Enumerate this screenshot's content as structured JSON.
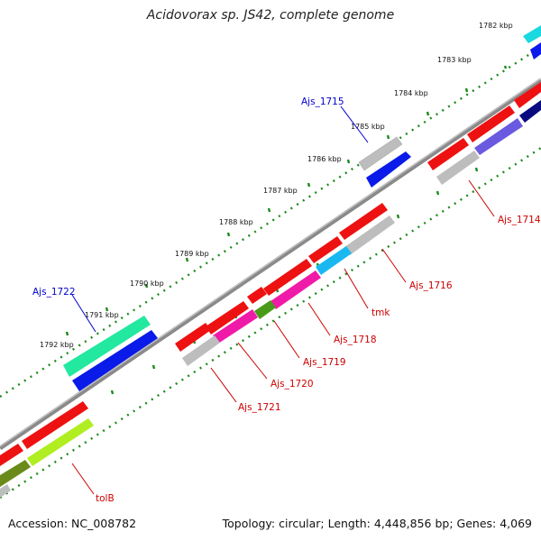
{
  "title": "Acidovorax sp. JS42, complete genome",
  "footer": {
    "accession": "Accession: NC_008782",
    "stats": "Topology: circular; Length: 4,448,856 bp; Genes: 4,069"
  },
  "kbp_ticks": [
    "1782 kbp",
    "1783 kbp",
    "1784 kbp",
    "1785 kbp",
    "1786 kbp",
    "1787 kbp",
    "1788 kbp",
    "1789 kbp",
    "1790 kbp",
    "1791 kbp",
    "1792 kbp"
  ],
  "gene_labels": [
    {
      "text": "Ajs_1715",
      "color": "#0000cc"
    },
    {
      "text": "Ajs_1722",
      "color": "#0000cc"
    },
    {
      "text": "Ajs_1714",
      "color": "#cc0000"
    },
    {
      "text": "Ajs_1716",
      "color": "#cc0000"
    },
    {
      "text": "tmk",
      "color": "#cc0000"
    },
    {
      "text": "Ajs_1718",
      "color": "#cc0000"
    },
    {
      "text": "Ajs_1719",
      "color": "#cc0000"
    },
    {
      "text": "Ajs_1720",
      "color": "#cc0000"
    },
    {
      "text": "Ajs_1721",
      "color": "#cc0000"
    },
    {
      "text": "tolB",
      "color": "#cc0000"
    }
  ],
  "colors": {
    "backbone": "#8a8a8a",
    "cds": "#ee1111",
    "forward_feature": "#0a1ae8",
    "tick_dots": "#1a8a1a"
  }
}
